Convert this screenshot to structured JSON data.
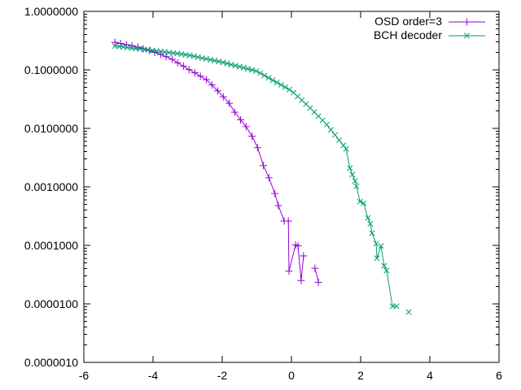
{
  "chart_data": {
    "type": "line",
    "title": "",
    "xlabel": "",
    "ylabel": "",
    "x_range": [
      -6,
      6
    ],
    "y_range": [
      1e-06,
      1
    ],
    "y_scale": "log",
    "grid": false,
    "legend_position": "top-right",
    "background_color": "#ffffff",
    "axis_color": "#000000",
    "x_ticks": {
      "values": [
        -6,
        -4,
        -2,
        0,
        2,
        4,
        6
      ],
      "labels": [
        "-6",
        "-4",
        "-2",
        "0",
        "2",
        "4",
        "6"
      ]
    },
    "y_ticks": {
      "values": [
        1,
        0.1,
        0.01,
        0.001,
        0.0001,
        1e-05,
        1e-06
      ],
      "labels": [
        "1.0000000",
        "0.1000000",
        "0.0100000",
        "0.0010000",
        "0.0001000",
        "0.0000100",
        "0.0000010"
      ]
    },
    "series": [
      {
        "name": "OSD order=3",
        "color": "#9400d3",
        "marker": "plus",
        "segments": [
          [
            [
              -5.1,
              0.295
            ],
            [
              -4.94,
              0.283
            ],
            [
              -4.77,
              0.27
            ],
            [
              -4.61,
              0.259
            ],
            [
              -4.44,
              0.245
            ],
            [
              -4.28,
              0.229
            ],
            [
              -4.11,
              0.214
            ],
            [
              -3.95,
              0.199
            ],
            [
              -3.78,
              0.183
            ],
            [
              -3.62,
              0.168
            ],
            [
              -3.45,
              0.152
            ],
            [
              -3.29,
              0.132
            ],
            [
              -3.12,
              0.116
            ],
            [
              -2.96,
              0.101
            ],
            [
              -2.79,
              0.0891
            ],
            [
              -2.63,
              0.078
            ],
            [
              -2.46,
              0.0681
            ],
            [
              -2.3,
              0.0553
            ],
            [
              -2.13,
              0.0437
            ],
            [
              -1.97,
              0.0346
            ],
            [
              -1.8,
              0.0269
            ],
            [
              -1.64,
              0.0189
            ],
            [
              -1.47,
              0.014
            ],
            [
              -1.31,
              0.0107
            ],
            [
              -1.14,
              0.00734
            ],
            [
              -0.98,
              0.00468
            ],
            [
              -0.81,
              0.00231
            ],
            [
              -0.65,
              0.00143
            ],
            [
              -0.48,
              0.000771
            ],
            [
              -0.38,
              0.000479
            ],
            [
              -0.21,
              0.000261
            ],
            [
              -0.09,
              0.000261
            ],
            [
              -0.07,
              3.63e-05
            ],
            [
              0.12,
              0.000102
            ],
            [
              0.19,
              9.77e-05
            ],
            [
              0.28,
              2.51e-05
            ],
            [
              0.35,
              6.61e-05
            ]
          ],
          [
            [
              0.68,
              4.07e-05
            ],
            [
              0.78,
              2.34e-05
            ]
          ]
        ]
      },
      {
        "name": "BCH decoder",
        "color": "#009e73",
        "marker": "cross",
        "segments": [
          [
            [
              -5.1,
              0.255
            ],
            [
              -4.98,
              0.251
            ],
            [
              -4.86,
              0.246
            ],
            [
              -4.74,
              0.241
            ],
            [
              -4.62,
              0.237
            ],
            [
              -4.5,
              0.232
            ],
            [
              -4.38,
              0.228
            ],
            [
              -4.26,
              0.224
            ],
            [
              -4.14,
              0.22
            ],
            [
              -4.02,
              0.216
            ],
            [
              -3.9,
              0.211
            ],
            [
              -3.78,
              0.207
            ],
            [
              -3.66,
              0.202
            ],
            [
              -3.54,
              0.198
            ],
            [
              -3.42,
              0.194
            ],
            [
              -3.3,
              0.19
            ],
            [
              -3.18,
              0.186
            ],
            [
              -3.06,
              0.182
            ],
            [
              -2.94,
              0.177
            ],
            [
              -2.82,
              0.171
            ],
            [
              -2.7,
              0.165
            ],
            [
              -2.58,
              0.159
            ],
            [
              -2.46,
              0.154
            ],
            [
              -2.34,
              0.149
            ],
            [
              -2.22,
              0.144
            ],
            [
              -2.1,
              0.139
            ],
            [
              -1.98,
              0.134
            ],
            [
              -1.86,
              0.129
            ],
            [
              -1.74,
              0.123
            ],
            [
              -1.62,
              0.118
            ],
            [
              -1.5,
              0.113
            ],
            [
              -1.38,
              0.109
            ],
            [
              -1.26,
              0.104
            ],
            [
              -1.14,
              0.0998
            ],
            [
              -1.02,
              0.0957
            ],
            [
              -0.9,
              0.088
            ],
            [
              -0.78,
              0.0802
            ],
            [
              -0.66,
              0.0731
            ],
            [
              -0.54,
              0.0666
            ],
            [
              -0.42,
              0.0608
            ],
            [
              -0.3,
              0.0554
            ],
            [
              -0.18,
              0.0505
            ],
            [
              -0.06,
              0.046
            ],
            [
              0.06,
              0.0407
            ],
            [
              0.18,
              0.0351
            ],
            [
              0.3,
              0.0302
            ],
            [
              0.42,
              0.026
            ],
            [
              0.54,
              0.0223
            ],
            [
              0.66,
              0.019
            ],
            [
              0.78,
              0.0161
            ],
            [
              0.9,
              0.0137
            ],
            [
              1.02,
              0.0116
            ],
            [
              1.14,
              0.00944
            ],
            [
              1.26,
              0.00771
            ],
            [
              1.38,
              0.00628
            ],
            [
              1.5,
              0.00512
            ],
            [
              1.58,
              0.00447
            ],
            [
              1.69,
              0.00209
            ],
            [
              1.76,
              0.00162
            ],
            [
              1.84,
              0.00126
            ],
            [
              1.88,
              0.00102
            ],
            [
              1.98,
              0.000562
            ],
            [
              2.09,
              0.000525
            ],
            [
              2.21,
              0.000295
            ],
            [
              2.28,
              0.000234
            ],
            [
              2.33,
              0.000162
            ],
            [
              2.45,
              0.000107
            ],
            [
              2.47,
              6.03e-05
            ],
            [
              2.59,
              9.77e-05
            ],
            [
              2.68,
              4.47e-05
            ],
            [
              2.75,
              3.72e-05
            ],
            [
              2.92,
              9.12e-06
            ],
            [
              3.04,
              9.12e-06
            ]
          ],
          [
            [
              3.39,
              7.24e-06
            ]
          ]
        ]
      }
    ]
  }
}
